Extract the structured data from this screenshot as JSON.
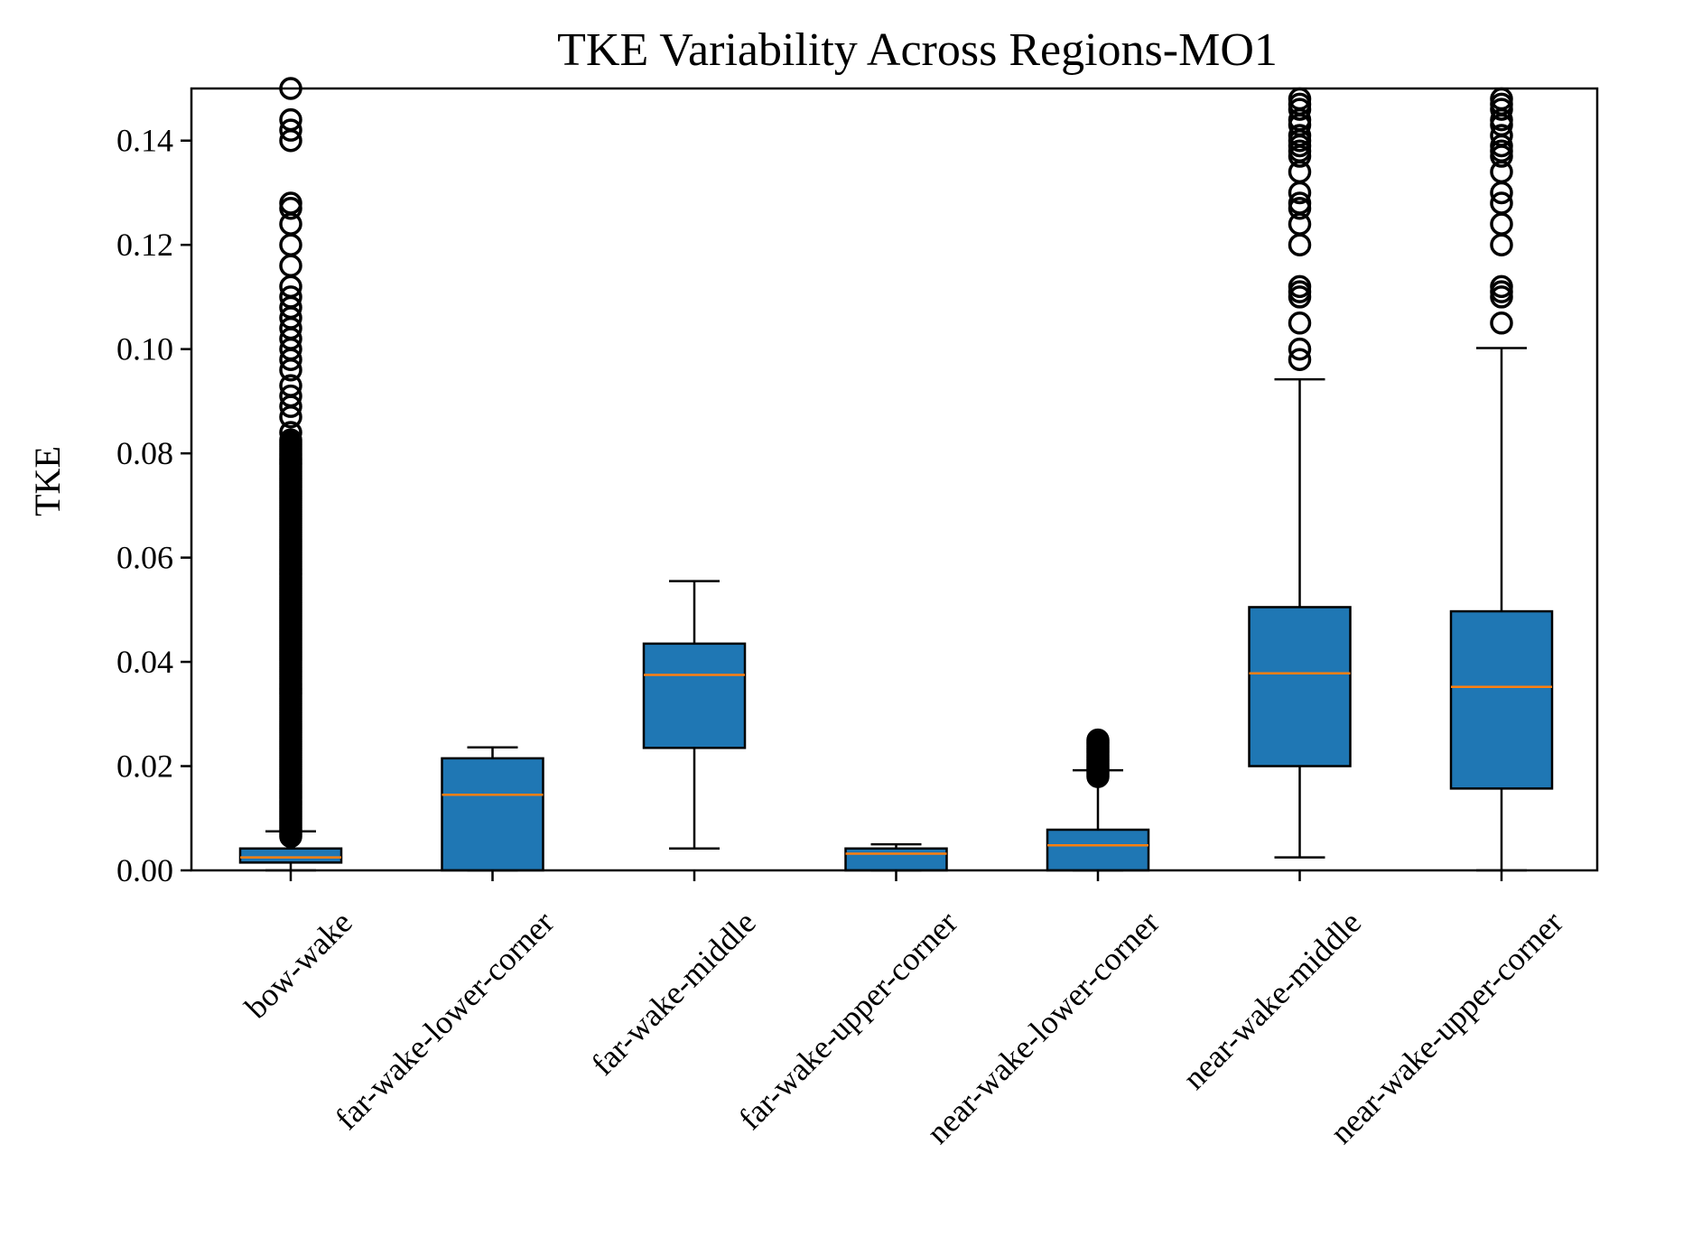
{
  "chart_data": {
    "type": "box",
    "title": "TKE Variability Across Regions-MO1",
    "xlabel": "",
    "ylabel": "TKE",
    "ylim": [
      0,
      0.15
    ],
    "yticks": [
      0.0,
      0.02,
      0.04,
      0.06,
      0.08,
      0.1,
      0.12,
      0.14
    ],
    "ytick_labels": [
      "0.00",
      "0.02",
      "0.04",
      "0.06",
      "0.08",
      "0.10",
      "0.12",
      "0.14"
    ],
    "grid": false,
    "colors": {
      "box_fill": "#1f77b4",
      "median": "#ff7f0e",
      "edge": "#000000"
    },
    "categories": [
      "bow-wake",
      "far-wake-lower-corner",
      "far-wake-middle",
      "far-wake-upper-corner",
      "near-wake-lower-corner",
      "near-wake-middle",
      "near-wake-upper-corner"
    ],
    "boxes": [
      {
        "whisker_low": 0.0,
        "q1": 0.0015,
        "median": 0.0025,
        "q3": 0.0042,
        "whisker_high": 0.0075,
        "outliers_range": [
          0.0065,
          0.15
        ],
        "outliers_sparse": [
          0.084,
          0.087,
          0.089,
          0.091,
          0.093,
          0.096,
          0.098,
          0.1,
          0.102,
          0.104,
          0.106,
          0.108,
          0.11,
          0.112,
          0.116,
          0.12,
          0.124,
          0.127,
          0.128,
          0.14,
          0.142,
          0.144,
          0.15
        ]
      },
      {
        "whisker_low": 0.0,
        "q1": 0.0,
        "median": 0.0145,
        "q3": 0.0215,
        "whisker_high": 0.0236,
        "outliers": []
      },
      {
        "whisker_low": 0.0042,
        "q1": 0.0235,
        "median": 0.0375,
        "q3": 0.0435,
        "whisker_high": 0.0555,
        "outliers": []
      },
      {
        "whisker_low": 0.0,
        "q1": 0.0,
        "median": 0.0032,
        "q3": 0.0042,
        "whisker_high": 0.005,
        "outliers": []
      },
      {
        "whisker_low": 0.0,
        "q1": 0.0,
        "median": 0.0048,
        "q3": 0.0078,
        "whisker_high": 0.0192,
        "outliers_range": [
          0.018,
          0.025
        ],
        "outliers_sparse": []
      },
      {
        "whisker_low": 0.0025,
        "q1": 0.02,
        "median": 0.0378,
        "q3": 0.0505,
        "whisker_high": 0.0942,
        "outliers": [
          0.098,
          0.1,
          0.105,
          0.11,
          0.111,
          0.112,
          0.12,
          0.124,
          0.127,
          0.128,
          0.13,
          0.134,
          0.137,
          0.138,
          0.139,
          0.14,
          0.141,
          0.143,
          0.144,
          0.146,
          0.147,
          0.148
        ]
      },
      {
        "whisker_low": 0.0,
        "q1": 0.0157,
        "median": 0.0352,
        "q3": 0.0497,
        "whisker_high": 0.1002,
        "outliers": [
          0.105,
          0.11,
          0.111,
          0.112,
          0.12,
          0.124,
          0.128,
          0.13,
          0.134,
          0.137,
          0.138,
          0.139,
          0.141,
          0.143,
          0.144,
          0.146,
          0.147,
          0.148
        ]
      }
    ]
  }
}
